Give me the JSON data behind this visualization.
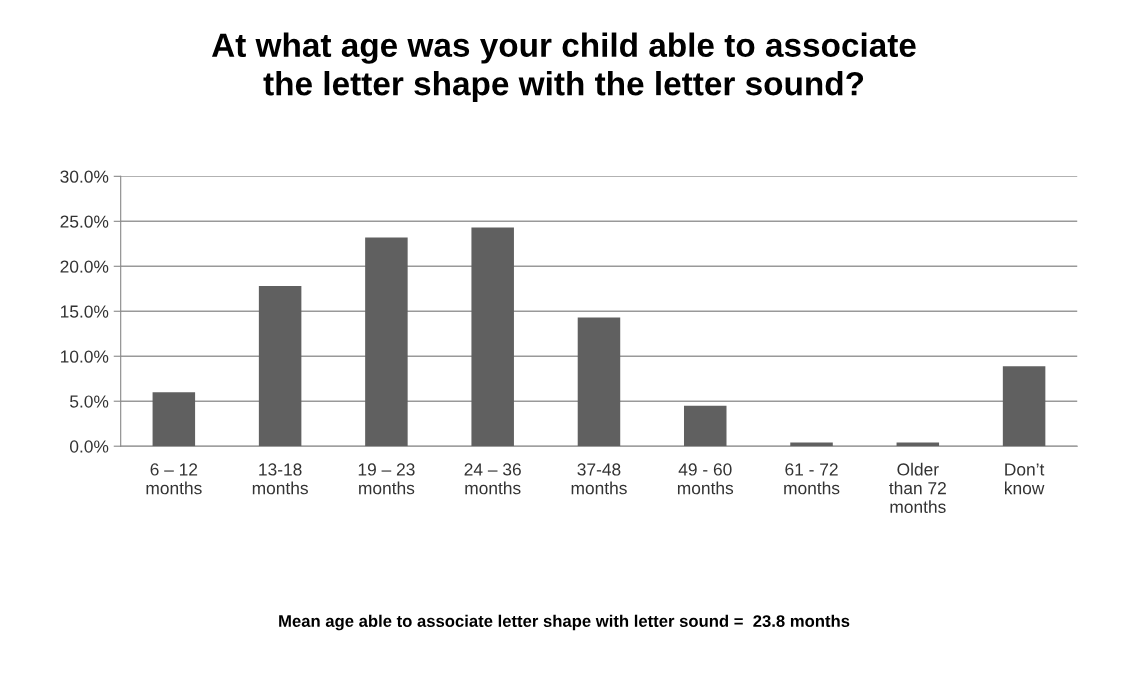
{
  "chart_data": {
    "type": "bar",
    "title": "At what age was your child able to associate\nthe letter shape with the letter sound?",
    "categories": [
      "6 – 12\nmonths",
      "13-18\nmonths",
      "19 – 23\nmonths",
      "24 – 36\nmonths",
      "37-48\nmonths",
      "49 - 60\nmonths",
      "61 - 72\nmonths",
      "Older\nthan 72\nmonths",
      "Don’t\nknow"
    ],
    "values": [
      6.0,
      17.8,
      23.2,
      24.3,
      14.3,
      4.5,
      0.4,
      0.4,
      8.9
    ],
    "color": "#606060",
    "ylim": [
      0,
      30
    ],
    "yticks": [
      {
        "value": 0,
        "label": "0.0%"
      },
      {
        "value": 5,
        "label": "5.0%"
      },
      {
        "value": 10,
        "label": "10.0%"
      },
      {
        "value": 15,
        "label": "15.0%"
      },
      {
        "value": 20,
        "label": "20.0%"
      },
      {
        "value": 25,
        "label": "25.0%"
      },
      {
        "value": 30,
        "label": "30.0%"
      }
    ],
    "grid": "y",
    "annotations": [
      "Mean age able to associate letter shape with letter sound =  23.8 months"
    ]
  }
}
